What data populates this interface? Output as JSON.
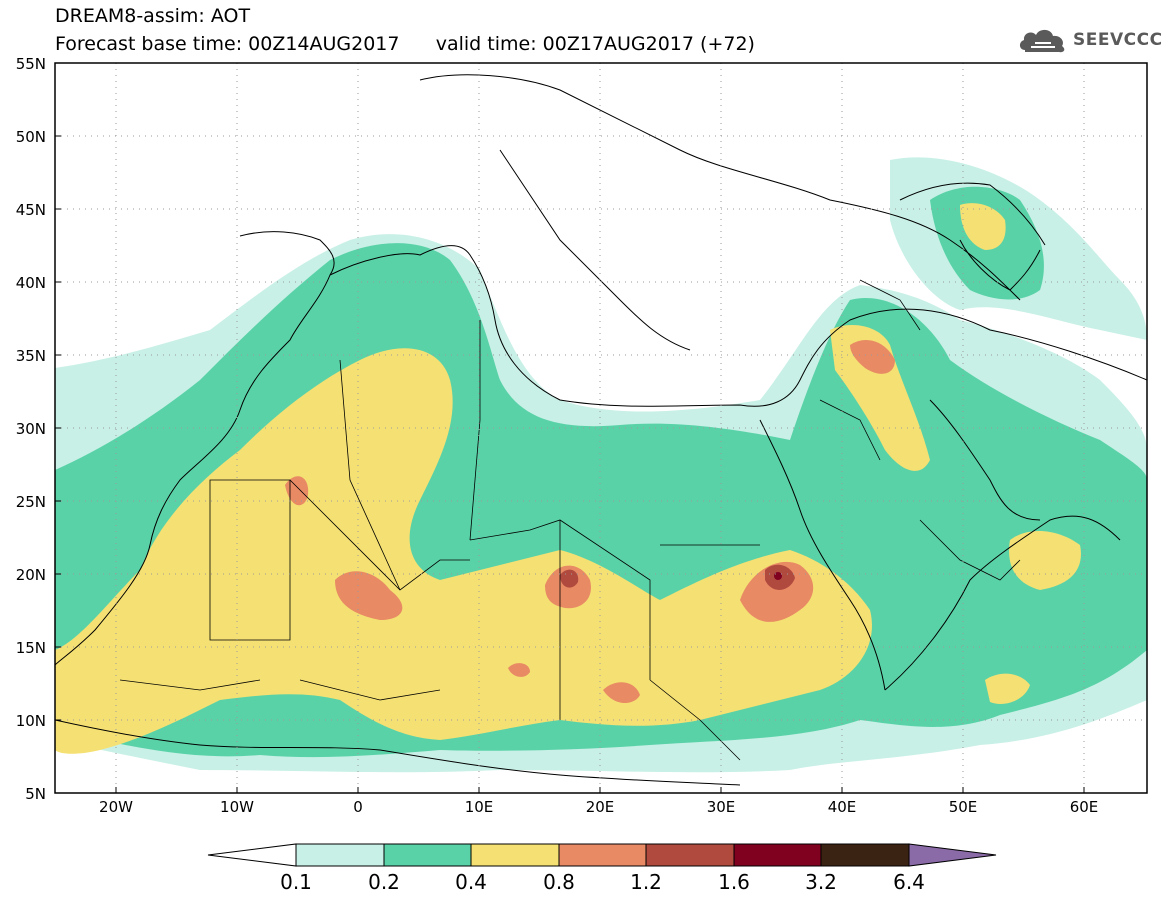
{
  "header": {
    "title_line1": "DREAM8-assim: AOT",
    "title_line2": "Forecast base time: 00Z14AUG2017      valid time: 00Z17AUG2017 (+72)"
  },
  "logo": {
    "icon": "cloud-icon",
    "text": "SEEVCCC"
  },
  "map": {
    "lon_labels": [
      "20W",
      "10W",
      "0",
      "10E",
      "20E",
      "30E",
      "40E",
      "50E",
      "60E"
    ],
    "lat_labels": [
      "55N",
      "50N",
      "45N",
      "40N",
      "35N",
      "30N",
      "25N",
      "20N",
      "15N",
      "10N",
      "5N"
    ],
    "lon_range": [
      -25,
      65
    ],
    "lat_range": [
      5,
      55
    ],
    "grid": "dotted"
  },
  "colorbar": {
    "labels": [
      "0.1",
      "0.2",
      "0.4",
      "0.8",
      "1.2",
      "1.6",
      "3.2",
      "6.4"
    ],
    "colors": [
      "#ffffff",
      "#c8f0e6",
      "#5ad2a8",
      "#f5e173",
      "#e88a64",
      "#b04a3e",
      "#800020",
      "#3b2314",
      "#8b6aa8"
    ]
  },
  "colors": {
    "very_light": "#c8f0e6",
    "light": "#5ad2a8",
    "yellow": "#f5e173",
    "orange": "#e88a64",
    "red": "#b04a3e",
    "darkred": "#800020"
  }
}
